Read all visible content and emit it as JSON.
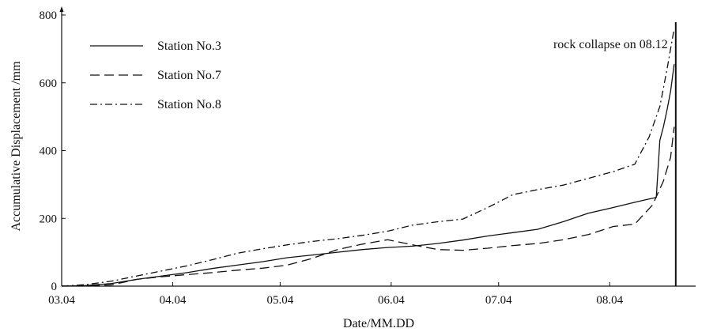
{
  "chart_data": {
    "type": "line",
    "xlabel": "Date/MM.DD",
    "ylabel": "Accumulative Displacement /mm",
    "xlim": [
      "03.04",
      "08.28"
    ],
    "ylim": [
      0,
      800
    ],
    "x_ticks": [
      "03.04",
      "04.04",
      "05.04",
      "06.04",
      "07.04",
      "08.04"
    ],
    "y_ticks": [
      0,
      200,
      400,
      600,
      800
    ],
    "grid": false,
    "legend_position": "top-left",
    "series": [
      {
        "name": "Station No.3",
        "line_style": "solid",
        "color": "#111111",
        "points": [
          [
            "03.04",
            0
          ],
          [
            "03.11",
            2
          ],
          [
            "03.18",
            8
          ],
          [
            "03.25",
            20
          ],
          [
            "04.01",
            30
          ],
          [
            "04.08",
            40
          ],
          [
            "04.15",
            52
          ],
          [
            "04.22",
            62
          ],
          [
            "04.29",
            72
          ],
          [
            "05.06",
            84
          ],
          [
            "05.13",
            92
          ],
          [
            "05.20",
            100
          ],
          [
            "05.27",
            108
          ],
          [
            "06.03",
            114
          ],
          [
            "06.10",
            118
          ],
          [
            "06.17",
            126
          ],
          [
            "06.24",
            136
          ],
          [
            "07.01",
            148
          ],
          [
            "07.08",
            158
          ],
          [
            "07.15",
            168
          ],
          [
            "07.22",
            190
          ],
          [
            "07.29",
            215
          ],
          [
            "08.05",
            232
          ],
          [
            "08.10",
            245
          ],
          [
            "08.14",
            255
          ],
          [
            "08.17",
            262
          ],
          [
            "08.18",
            430
          ],
          [
            "08.19",
            470
          ],
          [
            "08.20",
            520
          ],
          [
            "08.21",
            575
          ],
          [
            "08.22",
            655
          ]
        ]
      },
      {
        "name": "Station No.7",
        "line_style": "dashed",
        "color": "#111111",
        "points": [
          [
            "03.04",
            0
          ],
          [
            "03.11",
            1
          ],
          [
            "03.18",
            4
          ],
          [
            "03.25",
            20
          ],
          [
            "04.01",
            28
          ],
          [
            "04.08",
            34
          ],
          [
            "04.15",
            40
          ],
          [
            "04.22",
            47
          ],
          [
            "04.29",
            53
          ],
          [
            "05.06",
            62
          ],
          [
            "05.13",
            82
          ],
          [
            "05.20",
            108
          ],
          [
            "05.27",
            124
          ],
          [
            "06.03",
            137
          ],
          [
            "06.10",
            122
          ],
          [
            "06.17",
            108
          ],
          [
            "06.24",
            106
          ],
          [
            "07.01",
            112
          ],
          [
            "07.08",
            120
          ],
          [
            "07.15",
            126
          ],
          [
            "07.22",
            137
          ],
          [
            "07.29",
            152
          ],
          [
            "08.05",
            176
          ],
          [
            "08.11",
            183
          ],
          [
            "08.16",
            240
          ],
          [
            "08.19",
            310
          ],
          [
            "08.21",
            380
          ],
          [
            "08.22",
            470
          ]
        ]
      },
      {
        "name": "Station No.8",
        "line_style": "dash-dot",
        "color": "#111111",
        "points": [
          [
            "03.04",
            0
          ],
          [
            "03.11",
            5
          ],
          [
            "03.18",
            15
          ],
          [
            "03.25",
            30
          ],
          [
            "04.01",
            45
          ],
          [
            "04.08",
            60
          ],
          [
            "04.15",
            78
          ],
          [
            "04.22",
            97
          ],
          [
            "04.29",
            110
          ],
          [
            "05.06",
            122
          ],
          [
            "05.13",
            132
          ],
          [
            "05.20",
            140
          ],
          [
            "05.27",
            150
          ],
          [
            "06.03",
            162
          ],
          [
            "06.10",
            180
          ],
          [
            "06.17",
            190
          ],
          [
            "06.24",
            198
          ],
          [
            "07.01",
            232
          ],
          [
            "07.08",
            270
          ],
          [
            "07.15",
            285
          ],
          [
            "07.22",
            298
          ],
          [
            "07.29",
            318
          ],
          [
            "08.05",
            338
          ],
          [
            "08.11",
            360
          ],
          [
            "08.15",
            440
          ],
          [
            "08.18",
            530
          ],
          [
            "08.20",
            640
          ],
          [
            "08.22",
            760
          ]
        ]
      }
    ],
    "annotations": [
      {
        "text": "rock collapse on 08.12",
        "x": "08.22",
        "type": "vertical-line"
      }
    ]
  }
}
